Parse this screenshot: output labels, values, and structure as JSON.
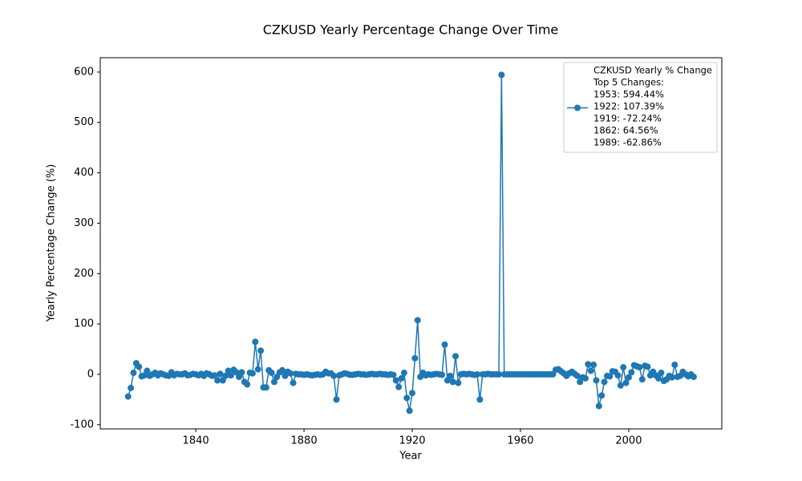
{
  "chart_data": {
    "type": "line",
    "title": "CZKUSD Yearly Percentage Change Over Time",
    "x_label": "Year",
    "y_label": "Yearly Percentage Change (%)",
    "x": [
      1815,
      1816,
      1817,
      1818,
      1819,
      1820,
      1821,
      1822,
      1823,
      1824,
      1825,
      1826,
      1827,
      1828,
      1829,
      1830,
      1831,
      1832,
      1833,
      1834,
      1835,
      1836,
      1837,
      1838,
      1839,
      1840,
      1841,
      1842,
      1843,
      1844,
      1845,
      1846,
      1847,
      1848,
      1849,
      1850,
      1851,
      1852,
      1853,
      1854,
      1855,
      1856,
      1857,
      1858,
      1859,
      1860,
      1861,
      1862,
      1863,
      1864,
      1865,
      1866,
      1867,
      1868,
      1869,
      1870,
      1871,
      1872,
      1873,
      1874,
      1875,
      1876,
      1877,
      1878,
      1879,
      1880,
      1881,
      1882,
      1883,
      1884,
      1885,
      1886,
      1887,
      1888,
      1889,
      1890,
      1891,
      1892,
      1893,
      1894,
      1895,
      1896,
      1897,
      1898,
      1899,
      1900,
      1901,
      1902,
      1903,
      1904,
      1905,
      1906,
      1907,
      1908,
      1909,
      1910,
      1911,
      1912,
      1913,
      1914,
      1915,
      1916,
      1917,
      1918,
      1919,
      1920,
      1921,
      1922,
      1923,
      1924,
      1925,
      1926,
      1927,
      1928,
      1929,
      1930,
      1931,
      1932,
      1933,
      1934,
      1935,
      1936,
      1937,
      1938,
      1939,
      1940,
      1941,
      1942,
      1943,
      1944,
      1945,
      1946,
      1947,
      1948,
      1949,
      1950,
      1951,
      1952,
      1953,
      1954,
      1955,
      1956,
      1957,
      1958,
      1959,
      1960,
      1961,
      1962,
      1963,
      1964,
      1965,
      1966,
      1967,
      1968,
      1969,
      1970,
      1971,
      1972,
      1973,
      1974,
      1975,
      1976,
      1977,
      1978,
      1979,
      1980,
      1981,
      1982,
      1983,
      1984,
      1985,
      1986,
      1987,
      1988,
      1989,
      1990,
      1991,
      1992,
      1993,
      1994,
      1995,
      1996,
      1997,
      1998,
      1999,
      2000,
      2001,
      2002,
      2003,
      2004,
      2005,
      2006,
      2007,
      2008,
      2009,
      2010,
      2011,
      2012,
      2013,
      2014,
      2015,
      2016,
      2017,
      2018,
      2019,
      2020,
      2021,
      2022,
      2023,
      2024
    ],
    "series": [
      {
        "name": "CZKUSD Yearly % Change",
        "color": "#1f77b4",
        "values": [
          -44,
          -27,
          3,
          22,
          15,
          -4,
          -2,
          7,
          -3,
          0,
          3,
          -2,
          2,
          0,
          -2,
          -3,
          4,
          -2,
          1,
          0,
          0,
          2,
          -2,
          -1,
          1,
          0,
          -2,
          1,
          -3,
          2,
          0,
          -3,
          -2,
          -12,
          1,
          -12,
          -3,
          7,
          -2,
          9,
          4,
          -5,
          4,
          -15,
          -20,
          3,
          2,
          64.56,
          10,
          47,
          -26,
          -26,
          8,
          3,
          -15,
          -5,
          4,
          8,
          -3,
          5,
          2,
          -17,
          1,
          0,
          0,
          -1,
          0,
          -1,
          -2,
          -1,
          0,
          -1,
          0,
          5,
          2,
          2,
          -3,
          -50,
          -2,
          0,
          2,
          1,
          -1,
          -1,
          0,
          1,
          0,
          0,
          -1,
          0,
          1,
          0,
          0,
          1,
          0,
          0,
          -1,
          0,
          -1,
          -12,
          -25,
          -8,
          3,
          -47,
          -72.24,
          -37,
          32,
          107.39,
          -5,
          3,
          -2,
          0,
          -1,
          0,
          1,
          0,
          -1,
          59,
          -12,
          -3,
          -15,
          36,
          -17,
          0,
          1,
          0,
          1,
          0,
          -1,
          0,
          -50,
          0,
          0,
          1,
          0,
          0,
          0,
          0,
          594.44,
          0,
          0,
          0,
          0,
          0,
          0,
          0,
          0,
          0,
          0,
          0,
          0,
          0,
          0,
          0,
          0,
          0,
          0,
          0,
          9,
          10,
          6,
          2,
          -3,
          2,
          5,
          1,
          -3,
          -15,
          -6,
          -8,
          20,
          7,
          19,
          -12,
          -62.86,
          -42,
          -15,
          -3,
          -4,
          6,
          5,
          -2,
          -22,
          14,
          -17,
          -6,
          4,
          18,
          16,
          14,
          -10,
          17,
          15,
          -2,
          5,
          -2,
          -8,
          3,
          -13,
          -10,
          -3,
          -6,
          19,
          -5,
          -3,
          5,
          0,
          -4,
          0,
          -5
        ]
      }
    ],
    "legend_notes": [
      "Top 5 Changes:",
      "1953: 594.44%",
      "1922: 107.39%",
      "1919: -72.24%",
      "1862: 64.56%",
      "1989: -62.86%"
    ],
    "legend_position": "upper right",
    "xlim": [
      1804.7,
      2034.4
    ],
    "xticks": [
      1840,
      1880,
      1920,
      1960,
      2000
    ],
    "ylim": [
      -108.3,
      628.5
    ],
    "yticks": [
      -100,
      0,
      100,
      200,
      300,
      400,
      500,
      600
    ],
    "grid": false
  }
}
